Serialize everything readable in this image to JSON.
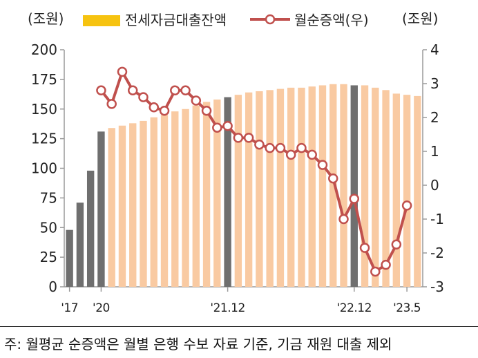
{
  "colors": {
    "bar_highlight": "#6f6f6f",
    "bar_normal": "#f9caa2",
    "legend_bar_swatch": "#f6c310",
    "line": "#c0504d",
    "marker_fill": "#ffffff",
    "axis": "#9a9a9a",
    "text": "#222222"
  },
  "left_unit": "(조원)",
  "right_unit": "(조원)",
  "legend": {
    "bar_label": "전세자금대출잔액",
    "line_label": "월순증액(우)"
  },
  "footnote": "주: 월평균 순증액은 월별 은행 수보 자료 기준, 기금 재원 대출 제외",
  "chart_data": {
    "type": "bar+line",
    "left_axis": {
      "ylim": [
        0,
        200
      ],
      "ticks": [
        "0",
        "25",
        "50",
        "75",
        "100",
        "125",
        "150",
        "175",
        "200"
      ]
    },
    "right_axis": {
      "ylim": [
        -3,
        4
      ],
      "ticks": [
        "-3",
        "-2",
        "-1",
        "0",
        "1",
        "2",
        "3",
        "4"
      ]
    },
    "x_tick_labels": [
      {
        "index": 0,
        "label": "'17"
      },
      {
        "index": 3,
        "label": "'20"
      },
      {
        "index": 15,
        "label": "'21.12"
      },
      {
        "index": 27,
        "label": "'22.12"
      },
      {
        "index": 32,
        "label": "'23.5"
      }
    ],
    "bar_series": {
      "name": "전세자금대출잔액",
      "highlight_indices": [
        0,
        1,
        2,
        3,
        15,
        27
      ],
      "values": [
        48,
        71,
        98,
        131,
        134,
        136,
        138,
        140,
        143,
        145,
        148,
        150,
        153,
        156,
        158,
        160,
        162,
        164,
        165,
        166,
        167,
        168,
        168,
        169,
        170,
        171,
        171,
        170,
        170,
        168,
        166,
        163,
        162,
        161
      ]
    },
    "line_series": {
      "name": "월순증액(우)",
      "start_index": 3,
      "values": [
        2.8,
        2.4,
        3.35,
        2.8,
        2.6,
        2.3,
        2.2,
        2.8,
        2.8,
        2.5,
        2.2,
        1.7,
        1.75,
        1.4,
        1.4,
        1.2,
        1.1,
        1.1,
        0.9,
        1.1,
        0.9,
        0.6,
        0.2,
        -1.0,
        -0.4,
        -1.85,
        -2.55,
        -2.35,
        -1.75,
        -0.6
      ]
    }
  }
}
